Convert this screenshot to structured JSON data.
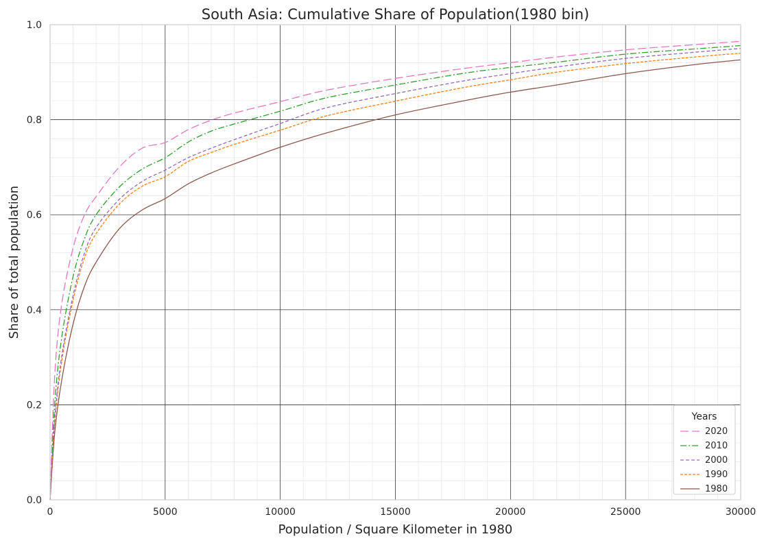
{
  "chart_data": {
    "type": "line",
    "title": "South Asia: Cumulative Share of Population(1980 bin)",
    "xlabel": "Population / Square Kilometer in 1980",
    "ylabel": "Share of total population",
    "xlim": [
      0,
      30000
    ],
    "ylim": [
      0,
      1.0
    ],
    "x_ticks": [
      0,
      5000,
      10000,
      15000,
      20000,
      25000,
      30000
    ],
    "x_tick_labels": [
      "0",
      "5000",
      "10000",
      "15000",
      "20000",
      "25000",
      "30000"
    ],
    "y_ticks": [
      0,
      0.2,
      0.4,
      0.6,
      0.8,
      1.0
    ],
    "y_tick_labels": [
      "0.0",
      "0.2",
      "0.4",
      "0.6",
      "0.8",
      "1.0"
    ],
    "grid": true,
    "legend": {
      "title": "Years",
      "position": "lower-right"
    },
    "x": [
      0,
      200,
      500,
      1000,
      1500,
      2000,
      3000,
      4000,
      5000,
      6000,
      7000,
      8000,
      10000,
      12000,
      15000,
      18000,
      20000,
      22000,
      25000,
      28000,
      30000
    ],
    "series": [
      {
        "name": "2020",
        "color": "#e377c2",
        "dash": "12,5",
        "values": [
          0.0,
          0.26,
          0.41,
          0.53,
          0.6,
          0.638,
          0.7,
          0.74,
          0.752,
          0.779,
          0.799,
          0.814,
          0.838,
          0.862,
          0.887,
          0.908,
          0.92,
          0.932,
          0.947,
          0.958,
          0.965
        ]
      },
      {
        "name": "2010",
        "color": "#2ca02c",
        "dash": "9,3,2,3",
        "values": [
          0.0,
          0.2,
          0.34,
          0.47,
          0.55,
          0.6,
          0.658,
          0.696,
          0.72,
          0.753,
          0.776,
          0.791,
          0.818,
          0.846,
          0.873,
          0.898,
          0.91,
          0.921,
          0.938,
          0.949,
          0.956
        ]
      },
      {
        "name": "2000",
        "color": "#9467bd",
        "dash": "5,3",
        "values": [
          0.0,
          0.17,
          0.3,
          0.43,
          0.52,
          0.573,
          0.632,
          0.67,
          0.694,
          0.72,
          0.74,
          0.758,
          0.792,
          0.825,
          0.855,
          0.882,
          0.897,
          0.911,
          0.929,
          0.942,
          0.95
        ]
      },
      {
        "name": "1990",
        "color": "#ff7f0e",
        "dash": "4,2",
        "values": [
          0.0,
          0.16,
          0.29,
          0.42,
          0.51,
          0.56,
          0.622,
          0.66,
          0.68,
          0.712,
          0.731,
          0.748,
          0.778,
          0.808,
          0.839,
          0.868,
          0.884,
          0.9,
          0.918,
          0.932,
          0.94
        ]
      },
      {
        "name": "1980",
        "color": "#8c564b",
        "dash": "",
        "values": [
          0.0,
          0.14,
          0.25,
          0.37,
          0.45,
          0.5,
          0.57,
          0.61,
          0.634,
          0.665,
          0.688,
          0.707,
          0.742,
          0.772,
          0.81,
          0.84,
          0.858,
          0.873,
          0.897,
          0.916,
          0.926
        ]
      }
    ]
  }
}
